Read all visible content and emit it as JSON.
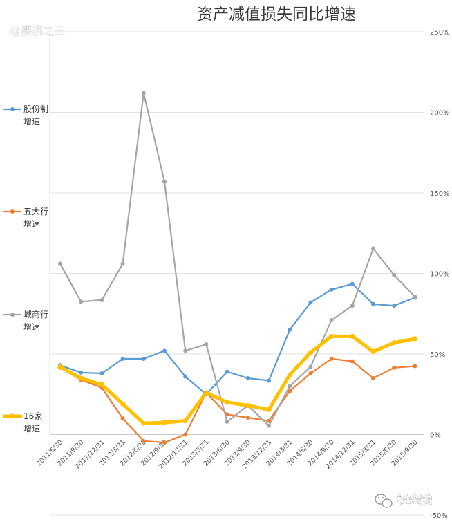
{
  "watermark": "@樱桃之王",
  "brand": "轻金融",
  "chart_data": {
    "type": "line",
    "title": "资产减值损失同比增速",
    "categories": [
      "2011/6/30",
      "2011/9/30",
      "2011/12/31",
      "2012/3/31",
      "2012/6/30",
      "2012/9/30",
      "2012/12/31",
      "2013/3/31",
      "2013/6/30",
      "2013/9/30",
      "2013/12/31",
      "2014/3/31",
      "2014/6/30",
      "2014/9/30",
      "2014/12/31",
      "2015/3/31",
      "2015/6/30",
      "2015/9/30"
    ],
    "ylim": [
      -50,
      250
    ],
    "ytick_values": [
      -50,
      0,
      50,
      100,
      150,
      200,
      250
    ],
    "ytick_labels": [
      "-50%",
      "0%",
      "50%",
      "100%",
      "150%",
      "200%",
      "250%"
    ],
    "y_axis_side": "right",
    "grid": "horizontal",
    "legend_position": "left",
    "series": [
      {
        "name": "股份制增速",
        "legend_lines": [
          "股份制",
          "增速"
        ],
        "color": "#5b9bd5",
        "width": 2.2,
        "values": [
          43,
          38.5,
          38,
          47,
          47,
          52,
          36,
          25,
          39,
          35,
          33.5,
          65,
          82,
          90,
          93.5,
          81,
          80,
          85
        ]
      },
      {
        "name": "五大行增速",
        "legend_lines": [
          "五大行",
          "增速"
        ],
        "color": "#ed7d31",
        "width": 2.2,
        "values": [
          41.5,
          34,
          29,
          10,
          -4,
          -5,
          0,
          26,
          12.5,
          10.5,
          8.5,
          27,
          38,
          47,
          45.5,
          35,
          41.5,
          42.5
        ]
      },
      {
        "name": "城商行增速",
        "legend_lines": [
          "城商行",
          "增速"
        ],
        "color": "#a5a5a5",
        "width": 2.2,
        "values": [
          106,
          82.5,
          83.5,
          106,
          212,
          157,
          52,
          56,
          8,
          18,
          5.5,
          30,
          42,
          71,
          80,
          115.5,
          99,
          85.5
        ]
      },
      {
        "name": "16家增速",
        "legend_lines": [
          "16家",
          "增速"
        ],
        "color": "#ffc000",
        "width": 5,
        "values": [
          42,
          35,
          31,
          19,
          7,
          7.5,
          8.5,
          26,
          20,
          18,
          15.5,
          37,
          51,
          61,
          61,
          51.5,
          57,
          59.5
        ]
      }
    ]
  }
}
